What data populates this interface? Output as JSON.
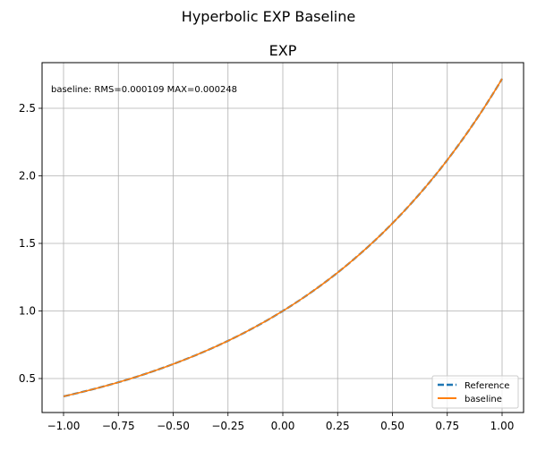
{
  "figure": {
    "suptitle": "Hyperbolic EXP Baseline",
    "title": "EXP",
    "annotation": "baseline: RMS=0.000109 MAX=0.000248"
  },
  "legend": {
    "items": [
      {
        "label": "Reference",
        "color": "#1f77b4",
        "style": "dashed"
      },
      {
        "label": "baseline",
        "color": "#ff7f0e",
        "style": "solid"
      }
    ]
  },
  "chart_data": {
    "type": "line",
    "title": "EXP",
    "suptitle": "Hyperbolic EXP Baseline",
    "xlabel": "",
    "ylabel": "",
    "xlim": [
      -1.1,
      1.1
    ],
    "ylim": [
      0.248,
      2.838
    ],
    "grid": true,
    "legend_position": "lower right",
    "xticks": [
      "-1.00",
      "-0.75",
      "-0.50",
      "-0.25",
      "0.00",
      "0.25",
      "0.50",
      "0.75",
      "1.00"
    ],
    "yticks": [
      "0.5",
      "1.0",
      "1.5",
      "2.0",
      "2.5"
    ],
    "x": [
      -1.0,
      -0.75,
      -0.5,
      -0.25,
      0.0,
      0.25,
      0.5,
      0.75,
      1.0
    ],
    "series": [
      {
        "name": "Reference",
        "values": [
          0.368,
          0.472,
          0.607,
          0.779,
          1.0,
          1.284,
          1.649,
          2.117,
          2.718
        ]
      },
      {
        "name": "baseline",
        "values": [
          0.368,
          0.472,
          0.607,
          0.779,
          1.0,
          1.284,
          1.649,
          2.117,
          2.718
        ]
      }
    ],
    "annotations": [
      "baseline: RMS=0.000109 MAX=0.000248"
    ]
  }
}
